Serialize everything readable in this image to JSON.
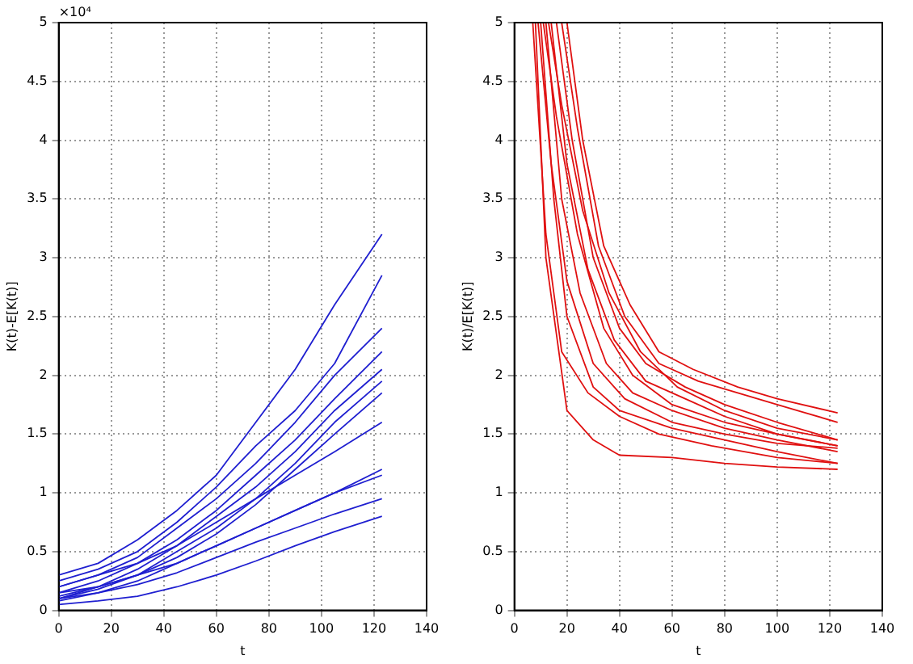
{
  "chart_data": [
    {
      "type": "line",
      "xlabel": "t",
      "ylabel": "K(t)-E[K(t)]",
      "annotations": [
        "×10⁴"
      ],
      "xlim": [
        0,
        140
      ],
      "xticks": [
        0,
        20,
        40,
        60,
        80,
        100,
        120,
        140
      ],
      "ylim": [
        0,
        5
      ],
      "yticks": [
        0,
        0.5,
        1,
        1.5,
        2,
        2.5,
        3,
        3.5,
        4,
        4.5,
        5
      ],
      "grid": true,
      "legend": false,
      "marker": "none",
      "line_style": "solid",
      "x": [
        0,
        15,
        30,
        45,
        60,
        75,
        90,
        105,
        123
      ],
      "series": [
        {
          "color": "#1f1fd0",
          "values": [
            0.3,
            0.4,
            0.6,
            0.85,
            1.15,
            1.6,
            2.05,
            2.6,
            3.2
          ]
        },
        {
          "color": "#1f1fd0",
          "values": [
            0.25,
            0.35,
            0.5,
            0.75,
            1.05,
            1.4,
            1.7,
            2.1,
            2.85
          ]
        },
        {
          "color": "#1f1fd0",
          "values": [
            0.2,
            0.3,
            0.45,
            0.7,
            0.95,
            1.25,
            1.6,
            2.0,
            2.4
          ]
        },
        {
          "color": "#1f1fd0",
          "values": [
            0.15,
            0.25,
            0.4,
            0.6,
            0.85,
            1.15,
            1.45,
            1.8,
            2.2
          ]
        },
        {
          "color": "#1f1fd0",
          "values": [
            0.1,
            0.2,
            0.35,
            0.55,
            0.8,
            1.05,
            1.35,
            1.7,
            2.05
          ]
        },
        {
          "color": "#1f1fd0",
          "values": [
            0.12,
            0.2,
            0.3,
            0.5,
            0.7,
            0.95,
            1.25,
            1.6,
            1.95
          ]
        },
        {
          "color": "#1f1fd0",
          "values": [
            0.1,
            0.18,
            0.3,
            0.45,
            0.65,
            0.9,
            1.2,
            1.5,
            1.85
          ]
        },
        {
          "color": "#1f1fd0",
          "values": [
            0.2,
            0.3,
            0.4,
            0.55,
            0.75,
            0.95,
            1.15,
            1.35,
            1.6
          ]
        },
        {
          "color": "#1f1fd0",
          "values": [
            0.08,
            0.15,
            0.25,
            0.4,
            0.55,
            0.7,
            0.85,
            1.0,
            1.2
          ]
        },
        {
          "color": "#1f1fd0",
          "values": [
            0.15,
            0.2,
            0.3,
            0.4,
            0.55,
            0.7,
            0.85,
            1.0,
            1.15
          ]
        },
        {
          "color": "#1f1fd0",
          "values": [
            0.1,
            0.15,
            0.22,
            0.32,
            0.45,
            0.58,
            0.7,
            0.82,
            0.95
          ]
        },
        {
          "color": "#1f1fd0",
          "values": [
            0.05,
            0.08,
            0.12,
            0.2,
            0.3,
            0.42,
            0.55,
            0.67,
            0.8
          ]
        }
      ]
    },
    {
      "type": "line",
      "xlabel": "t",
      "ylabel": "K(t)/E[K(t)]",
      "xlim": [
        0,
        140
      ],
      "xticks": [
        0,
        20,
        40,
        60,
        80,
        100,
        120,
        140
      ],
      "ylim": [
        0,
        5
      ],
      "yticks": [
        0,
        0.5,
        1,
        1.5,
        2,
        2.5,
        3,
        3.5,
        4,
        4.5,
        5
      ],
      "grid": true,
      "legend": false,
      "marker": "none",
      "line_style": "solid",
      "series": [
        {
          "color": "#e01010",
          "x": [
            8,
            12,
            20,
            30,
            40,
            60,
            80,
            100,
            123
          ],
          "values": [
            5,
            3,
            1.7,
            1.45,
            1.32,
            1.3,
            1.25,
            1.22,
            1.2
          ]
        },
        {
          "color": "#e01010",
          "x": [
            10,
            15,
            20,
            30,
            40,
            60,
            80,
            100,
            123
          ],
          "values": [
            5,
            3.5,
            2.5,
            1.9,
            1.7,
            1.55,
            1.45,
            1.35,
            1.25
          ]
        },
        {
          "color": "#e01010",
          "x": [
            12,
            18,
            25,
            35,
            45,
            60,
            80,
            100,
            123
          ],
          "values": [
            5,
            3.5,
            2.7,
            2.1,
            1.85,
            1.7,
            1.55,
            1.45,
            1.35
          ]
        },
        {
          "color": "#e01010",
          "x": [
            14,
            20,
            28,
            38,
            50,
            65,
            80,
            100,
            123
          ],
          "values": [
            5,
            3.8,
            2.9,
            2.3,
            1.95,
            1.8,
            1.65,
            1.5,
            1.4
          ]
        },
        {
          "color": "#e01010",
          "x": [
            16,
            22,
            30,
            40,
            50,
            65,
            80,
            100,
            123
          ],
          "values": [
            5,
            4,
            3,
            2.4,
            2.1,
            1.9,
            1.75,
            1.6,
            1.45
          ]
        },
        {
          "color": "#e01010",
          "x": [
            18,
            24,
            32,
            42,
            55,
            70,
            85,
            100,
            123
          ],
          "values": [
            5,
            4.1,
            3.1,
            2.5,
            2.1,
            1.95,
            1.85,
            1.75,
            1.6
          ]
        },
        {
          "color": "#e01010",
          "x": [
            20,
            26,
            34,
            44,
            55,
            68,
            85,
            100,
            123
          ],
          "values": [
            5,
            4,
            3.1,
            2.6,
            2.2,
            2.05,
            1.9,
            1.8,
            1.68
          ]
        },
        {
          "color": "#e01010",
          "x": [
            9,
            14,
            20,
            30,
            42,
            60,
            80,
            100,
            123
          ],
          "values": [
            5,
            3.8,
            2.8,
            2.1,
            1.8,
            1.6,
            1.5,
            1.42,
            1.38
          ]
        },
        {
          "color": "#e01010",
          "x": [
            11,
            16,
            24,
            34,
            45,
            60,
            80,
            100,
            123
          ],
          "values": [
            5,
            4.2,
            3.2,
            2.4,
            2.0,
            1.75,
            1.6,
            1.5,
            1.4
          ]
        },
        {
          "color": "#e01010",
          "x": [
            13,
            18,
            26,
            36,
            48,
            62,
            80,
            100,
            123
          ],
          "values": [
            5,
            4.3,
            3.4,
            2.7,
            2.2,
            1.9,
            1.7,
            1.55,
            1.45
          ]
        },
        {
          "color": "#e01010",
          "x": [
            7,
            12,
            18,
            28,
            40,
            55,
            75,
            100,
            123
          ],
          "values": [
            5,
            3.2,
            2.2,
            1.85,
            1.65,
            1.5,
            1.4,
            1.3,
            1.25
          ]
        }
      ]
    }
  ]
}
